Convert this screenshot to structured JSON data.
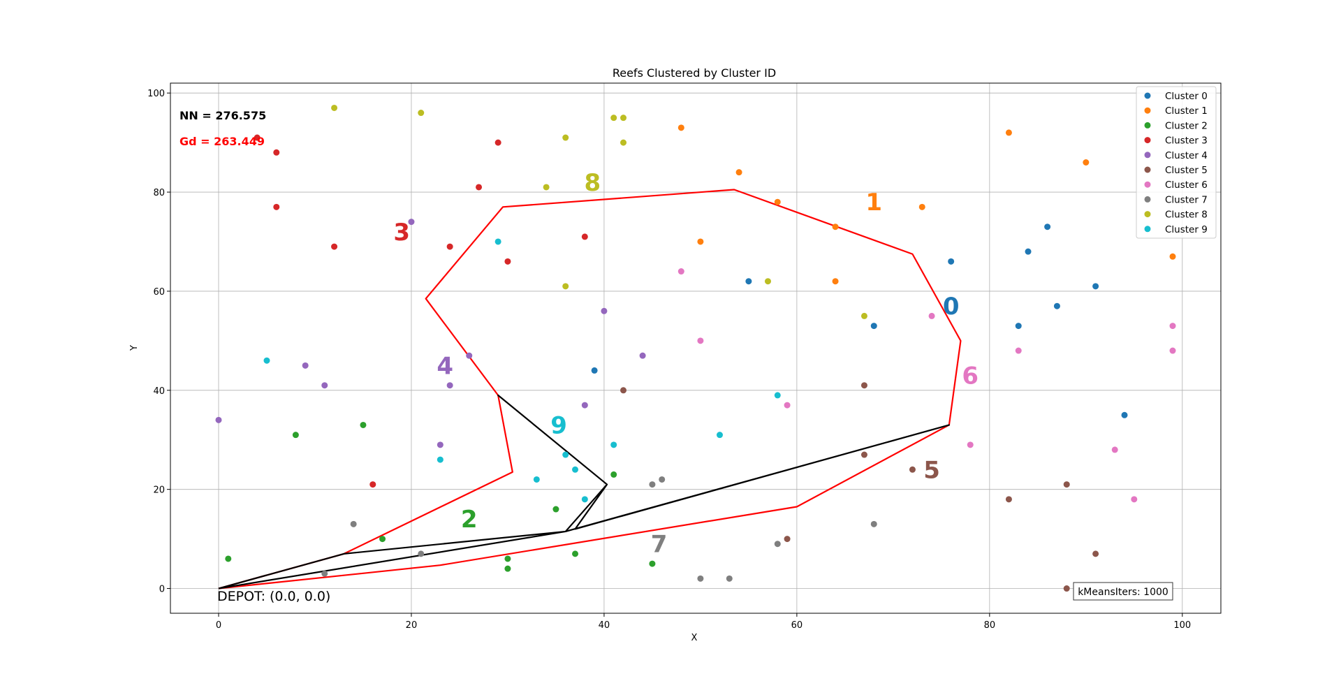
{
  "chart_data": {
    "type": "scatter",
    "title": "Reefs Clustered by Cluster ID",
    "xlabel": "X",
    "ylabel": "Y",
    "xlim": [
      -5,
      104
    ],
    "ylim": [
      -5,
      102
    ],
    "xticks": [
      0,
      20,
      40,
      60,
      80,
      100
    ],
    "yticks": [
      0,
      20,
      40,
      60,
      80,
      100
    ],
    "grid": true,
    "legend_position": "top-right",
    "annotations": {
      "nn": "NN = 276.575",
      "gd": "Gd = 263.449",
      "depot": "DEPOT: (0.0, 0.0)",
      "kmeans": "kMeansIters: 1000"
    },
    "series": [
      {
        "name": "Cluster 0",
        "label": "0",
        "color": "#1f77b4",
        "label_pos": [
          76,
          57
        ],
        "points": [
          [
            55,
            62
          ],
          [
            68,
            53
          ],
          [
            76,
            66
          ],
          [
            83,
            53
          ],
          [
            84,
            68
          ],
          [
            86,
            73
          ],
          [
            87,
            57
          ],
          [
            91,
            61
          ],
          [
            94,
            35
          ],
          [
            39,
            44
          ]
        ]
      },
      {
        "name": "Cluster 1",
        "label": "1",
        "color": "#ff7f0e",
        "label_pos": [
          68,
          78
        ],
        "points": [
          [
            48,
            93
          ],
          [
            54,
            84
          ],
          [
            58,
            78
          ],
          [
            64,
            73
          ],
          [
            64,
            62
          ],
          [
            73,
            77
          ],
          [
            82,
            92
          ],
          [
            90,
            86
          ],
          [
            99,
            67
          ],
          [
            50,
            70
          ]
        ]
      },
      {
        "name": "Cluster 2",
        "label": "2",
        "color": "#2ca02c",
        "label_pos": [
          26,
          14
        ],
        "points": [
          [
            1,
            6
          ],
          [
            8,
            31
          ],
          [
            15,
            33
          ],
          [
            17,
            10
          ],
          [
            30,
            6
          ],
          [
            30,
            4
          ],
          [
            35,
            16
          ],
          [
            37,
            7
          ],
          [
            41,
            23
          ],
          [
            45,
            5
          ]
        ]
      },
      {
        "name": "Cluster 3",
        "label": "3",
        "color": "#d62728",
        "label_pos": [
          19,
          72
        ],
        "points": [
          [
            4,
            91
          ],
          [
            6,
            88
          ],
          [
            6,
            77
          ],
          [
            12,
            69
          ],
          [
            16,
            21
          ],
          [
            24,
            69
          ],
          [
            27,
            81
          ],
          [
            29,
            90
          ],
          [
            30,
            66
          ],
          [
            38,
            71
          ]
        ]
      },
      {
        "name": "Cluster 4",
        "label": "4",
        "color": "#9467bd",
        "label_pos": [
          23.5,
          45
        ],
        "points": [
          [
            0,
            34
          ],
          [
            9,
            45
          ],
          [
            11,
            41
          ],
          [
            20,
            74
          ],
          [
            23,
            29
          ],
          [
            24,
            41
          ],
          [
            26,
            47
          ],
          [
            38,
            37
          ],
          [
            40,
            56
          ],
          [
            44,
            47
          ]
        ]
      },
      {
        "name": "Cluster 5",
        "label": "5",
        "color": "#8c564b",
        "label_pos": [
          74,
          24
        ],
        "points": [
          [
            42,
            40
          ],
          [
            59,
            10
          ],
          [
            67,
            41
          ],
          [
            67,
            27
          ],
          [
            72,
            24
          ],
          [
            82,
            18
          ],
          [
            88,
            21
          ],
          [
            88,
            0
          ],
          [
            91,
            7
          ],
          [
            91,
            0
          ]
        ]
      },
      {
        "name": "Cluster 6",
        "label": "6",
        "color": "#e377c2",
        "label_pos": [
          78,
          43
        ],
        "points": [
          [
            48,
            64
          ],
          [
            50,
            50
          ],
          [
            59,
            37
          ],
          [
            74,
            55
          ],
          [
            78,
            29
          ],
          [
            83,
            48
          ],
          [
            93,
            28
          ],
          [
            95,
            18
          ],
          [
            99,
            53
          ],
          [
            99,
            48
          ]
        ]
      },
      {
        "name": "Cluster 7",
        "label": "7",
        "color": "#7f7f7f",
        "label_pos": [
          45.7,
          9
        ],
        "points": [
          [
            11,
            3
          ],
          [
            14,
            13
          ],
          [
            21,
            7
          ],
          [
            45,
            21
          ],
          [
            46,
            22
          ],
          [
            50,
            2
          ],
          [
            53,
            2
          ],
          [
            58,
            9
          ],
          [
            68,
            13
          ]
        ]
      },
      {
        "name": "Cluster 8",
        "label": "8",
        "color": "#bcbd22",
        "label_pos": [
          38.8,
          82
        ],
        "points": [
          [
            12,
            97
          ],
          [
            21,
            96
          ],
          [
            34,
            81
          ],
          [
            36,
            91
          ],
          [
            36,
            61
          ],
          [
            41,
            95
          ],
          [
            42,
            95
          ],
          [
            42,
            90
          ],
          [
            57,
            62
          ],
          [
            67,
            55
          ]
        ]
      },
      {
        "name": "Cluster 9",
        "label": "9",
        "color": "#17becf",
        "label_pos": [
          35.3,
          33
        ],
        "points": [
          [
            5,
            46
          ],
          [
            23,
            26
          ],
          [
            29,
            70
          ],
          [
            33,
            22
          ],
          [
            36,
            27
          ],
          [
            37,
            24
          ],
          [
            38,
            18
          ],
          [
            41,
            29
          ],
          [
            52,
            31
          ],
          [
            58,
            39
          ]
        ]
      }
    ],
    "routes": [
      {
        "color": "#ff0000",
        "points": [
          [
            0,
            0
          ],
          [
            13,
            7
          ],
          [
            30.5,
            23.5
          ],
          [
            29,
            39
          ],
          [
            21.5,
            58.5
          ],
          [
            29.5,
            77
          ],
          [
            53.5,
            80.5
          ],
          [
            72,
            67.5
          ],
          [
            77,
            50
          ],
          [
            75.8,
            33
          ],
          [
            60,
            16.5
          ],
          [
            23,
            4.7
          ],
          [
            0,
            0
          ]
        ]
      },
      {
        "color": "#000000",
        "points": [
          [
            0,
            0
          ],
          [
            13,
            7
          ],
          [
            36,
            11.5
          ],
          [
            40.3,
            21
          ],
          [
            29,
            39
          ],
          [
            29,
            39
          ],
          [
            40.3,
            21
          ],
          [
            37,
            12
          ],
          [
            75.8,
            33
          ],
          [
            36,
            11.5
          ],
          [
            0,
            0
          ]
        ]
      }
    ]
  }
}
